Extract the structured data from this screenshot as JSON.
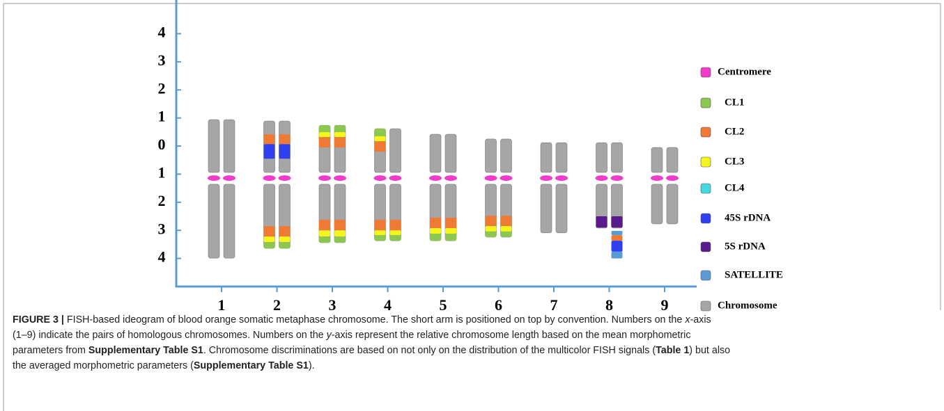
{
  "figure": {
    "ylim": [
      -5,
      5.2
    ],
    "yticks": [
      {
        "value": 4,
        "label": "4"
      },
      {
        "value": 3,
        "label": "3"
      },
      {
        "value": 2,
        "label": "2"
      },
      {
        "value": 1,
        "label": "1"
      },
      0,
      {
        "value": -1,
        "label": "1"
      },
      {
        "value": -2,
        "label": "2"
      },
      {
        "value": -3,
        "label": "3"
      },
      {
        "value": -4,
        "label": "4"
      }
    ],
    "categories": [
      "1",
      "2",
      "3",
      "4",
      "5",
      "6",
      "7",
      "8",
      "9"
    ],
    "centromere": -1.14,
    "legend": [
      {
        "label": "Centromere",
        "color": "#f03ccd"
      },
      {
        "label": "CL1",
        "color": "#8cc850"
      },
      {
        "label": "CL2",
        "color": "#ef7a33"
      },
      {
        "label": "CL3",
        "color": "#f5f51e"
      },
      {
        "label": "CL4",
        "color": "#44d8e0"
      },
      {
        "label": "45S rDNA",
        "color": "#3040f0"
      },
      {
        "label": "5S rDNA",
        "color": "#5a1a8c"
      },
      {
        "label": "SATELLITE",
        "color": "#5b9bd5"
      },
      {
        "label": "Chromosome",
        "color": "#a6a6a6"
      }
    ],
    "chromosomes": [
      {
        "short_arm": [
          0.94,
          -0.94
        ],
        "long_arm": [
          -1.36,
          -3.99
        ],
        "signals": []
      },
      {
        "short_arm": [
          0.89,
          -0.94
        ],
        "long_arm": [
          -1.36,
          -3.64
        ],
        "signals": [
          {
            "marker": 2,
            "top": 0.42,
            "bottom": 0.07
          },
          {
            "marker": 5,
            "top": 0.07,
            "bottom": -0.45
          },
          {
            "marker": 2,
            "top": -2.85,
            "bottom": -3.22
          },
          {
            "marker": 3,
            "top": -3.22,
            "bottom": -3.42
          },
          {
            "marker": 1,
            "top": -3.42,
            "bottom": -3.64
          }
        ]
      },
      {
        "short_arm": [
          0.74,
          -0.94
        ],
        "long_arm": [
          -1.36,
          -3.44
        ],
        "signals": [
          {
            "marker": 1,
            "top": 0.74,
            "bottom": 0.5
          },
          {
            "marker": 3,
            "top": 0.5,
            "bottom": 0.32
          },
          {
            "marker": 2,
            "top": 0.32,
            "bottom": -0.05
          },
          {
            "marker": 2,
            "top": -2.62,
            "bottom": -3.0
          },
          {
            "marker": 3,
            "top": -3.0,
            "bottom": -3.22
          },
          {
            "marker": 1,
            "top": -3.22,
            "bottom": -3.44
          }
        ]
      },
      {
        "short_arm": [
          0.62,
          -0.94
        ],
        "long_arm": [
          -1.36,
          -3.37
        ],
        "signals": [
          {
            "marker": 1,
            "top": 0.62,
            "bottom": 0.35,
            "chromatids": [
              0
            ]
          },
          {
            "marker": 3,
            "top": 0.35,
            "bottom": 0.17,
            "chromatids": [
              0
            ]
          },
          {
            "marker": 2,
            "top": 0.17,
            "bottom": -0.2,
            "chromatids": [
              0
            ]
          },
          {
            "marker": 2,
            "top": -2.62,
            "bottom": -3.0
          },
          {
            "marker": 3,
            "top": -3.0,
            "bottom": -3.17
          },
          {
            "marker": 1,
            "top": -3.17,
            "bottom": -3.37
          }
        ]
      },
      {
        "short_arm": [
          0.42,
          -0.94
        ],
        "long_arm": [
          -1.36,
          -3.37
        ],
        "signals": [
          {
            "marker": 2,
            "top": -2.55,
            "bottom": -2.92
          },
          {
            "marker": 3,
            "top": -2.92,
            "bottom": -3.12
          },
          {
            "marker": 1,
            "top": -3.12,
            "bottom": -3.37
          }
        ]
      },
      {
        "short_arm": [
          0.25,
          -0.94
        ],
        "long_arm": [
          -1.36,
          -3.24
        ],
        "signals": [
          {
            "marker": 2,
            "top": -2.48,
            "bottom": -2.85
          },
          {
            "marker": 3,
            "top": -2.85,
            "bottom": -3.04
          },
          {
            "marker": 1,
            "top": -3.04,
            "bottom": -3.24
          }
        ]
      },
      {
        "short_arm": [
          0.12,
          -0.94
        ],
        "long_arm": [
          -1.36,
          -3.09
        ],
        "signals": []
      },
      {
        "short_arm": [
          0.12,
          -0.94
        ],
        "long_arm": [
          -1.36,
          -2.92
        ],
        "signals": [
          {
            "marker": 6,
            "top": -2.5,
            "bottom": -2.9
          },
          {
            "marker": 7,
            "top": -3.02,
            "bottom": -3.17,
            "chromatids": [
              1
            ]
          },
          {
            "marker": 2,
            "top": -3.17,
            "bottom": -3.37,
            "chromatids": [
              1
            ]
          },
          {
            "marker": 5,
            "top": -3.37,
            "bottom": -3.76,
            "chromatids": [
              1
            ]
          },
          {
            "marker": 7,
            "top": -3.76,
            "bottom": -4.0,
            "chromatids": [
              1
            ]
          }
        ]
      },
      {
        "short_arm": [
          -0.05,
          -0.94
        ],
        "long_arm": [
          -1.36,
          -2.77
        ],
        "signals": []
      }
    ]
  },
  "caption": {
    "lines": [
      [
        {
          "text": "FIGURE 3 |",
          "style": "b"
        },
        {
          "text": " FISH-based ideogram of blood orange somatic metaphase chromosome. The short arm is positioned on top by convention. Numbers on the "
        },
        {
          "text": "x",
          "style": "i"
        },
        {
          "text": "-axis"
        }
      ],
      [
        {
          "text": "(1–9) indicate the pairs of homologous chromosomes. Numbers on the "
        },
        {
          "text": "y",
          "style": "i"
        },
        {
          "text": "-axis represent the relative chromosome length based on the mean morphometric"
        }
      ],
      [
        {
          "text": "parameters from "
        },
        {
          "text": "Supplementary Table S1",
          "style": "b"
        },
        {
          "text": ". Chromosome discriminations are based on not only on the distribution of the multicolor FISH signals ("
        },
        {
          "text": "Table 1",
          "style": "b"
        },
        {
          "text": ") but also"
        }
      ],
      [
        {
          "text": "the averaged morphometric parameters ("
        },
        {
          "text": "Supplementary Table S1",
          "style": "b"
        },
        {
          "text": ")."
        }
      ]
    ]
  }
}
